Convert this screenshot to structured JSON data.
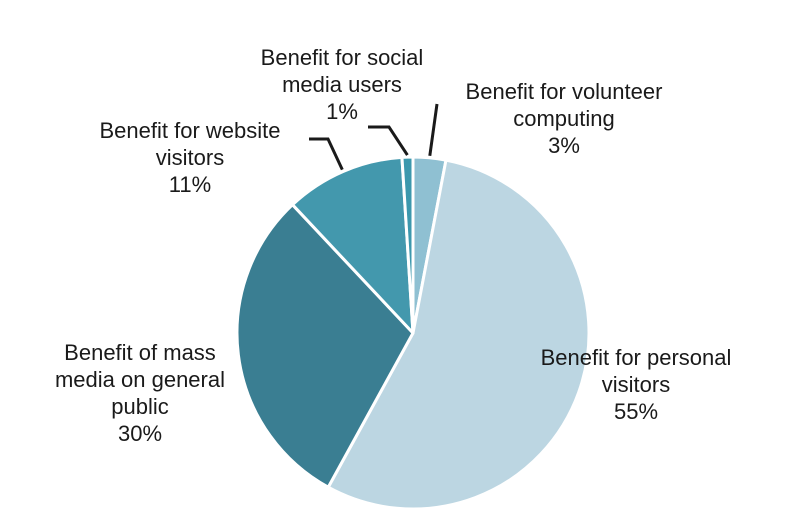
{
  "chart_data": {
    "type": "pie",
    "title": "",
    "slices": [
      {
        "lines": [
          "Benefit for volunteer",
          "computing"
        ],
        "value": 3,
        "value_label": "3%",
        "color": "#8fc0d2"
      },
      {
        "lines": [
          "Benefit for personal",
          "visitors"
        ],
        "value": 55,
        "value_label": "55%",
        "color": "#bcd6e2"
      },
      {
        "lines": [
          "Benefit of mass",
          "media on general",
          "public"
        ],
        "value": 30,
        "value_label": "30%",
        "color": "#3a7e92"
      },
      {
        "lines": [
          "Benefit for website",
          "visitors"
        ],
        "value": 11,
        "value_label": "11%",
        "color": "#4398ad"
      },
      {
        "lines": [
          "Benefit for social",
          "media users"
        ],
        "value": 1,
        "value_label": "1%",
        "color": "#3c98ad"
      }
    ],
    "slice_border_color": "#ffffff",
    "leader_line_color": "#1a1a1a",
    "legend": "none"
  }
}
